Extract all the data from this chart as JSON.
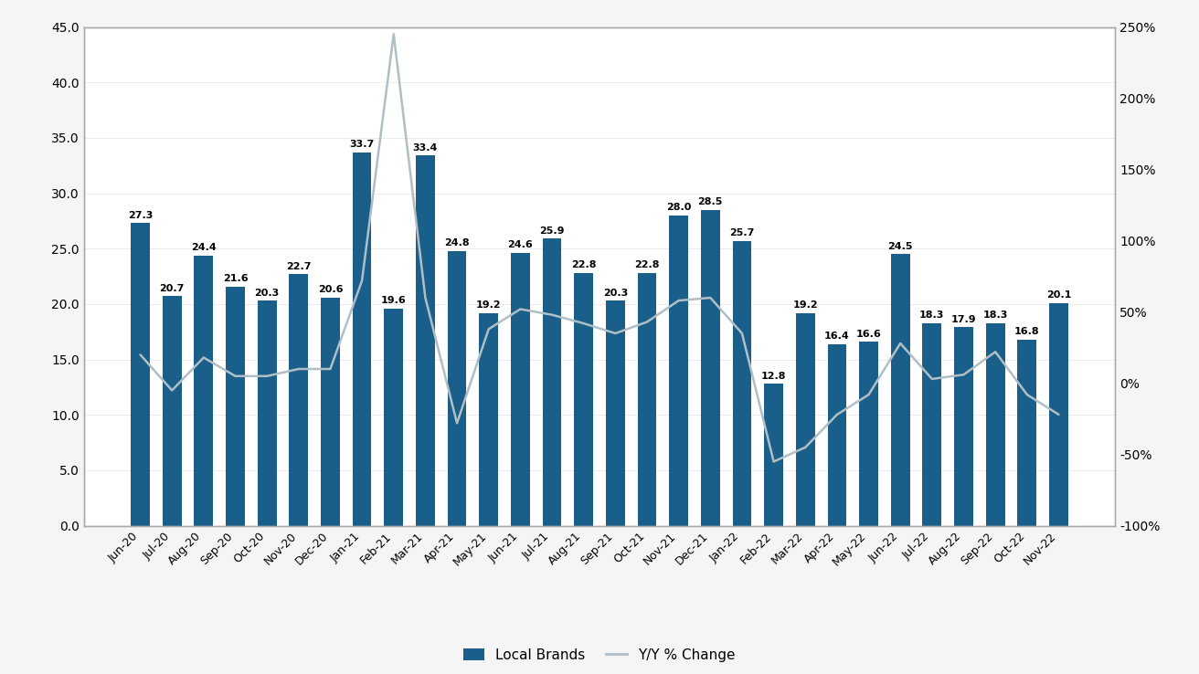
{
  "categories": [
    "Jun-20",
    "Jul-20",
    "Aug-20",
    "Sep-20",
    "Oct-20",
    "Nov-20",
    "Dec-20",
    "Jan-21",
    "Feb-21",
    "Mar-21",
    "Apr-21",
    "May-21",
    "Jun-21",
    "Jul-21",
    "Aug-21",
    "Sep-21",
    "Oct-21",
    "Nov-21",
    "Dec-21",
    "Jan-22",
    "Feb-22",
    "Mar-22",
    "Apr-22",
    "May-22",
    "Jun-22",
    "Jul-22",
    "Aug-22",
    "Sep-22",
    "Oct-22",
    "Nov-22"
  ],
  "bar_values": [
    27.3,
    20.7,
    24.4,
    21.6,
    20.3,
    22.7,
    20.6,
    33.7,
    19.6,
    33.4,
    24.8,
    19.2,
    24.6,
    25.9,
    22.8,
    20.3,
    22.8,
    28.0,
    28.5,
    25.7,
    12.8,
    19.2,
    16.4,
    16.6,
    24.5,
    18.3,
    17.9,
    18.3,
    16.8,
    20.1
  ],
  "yoy_pct": [
    0.2,
    -0.05,
    0.18,
    0.05,
    0.05,
    0.1,
    0.1,
    0.72,
    2.45,
    0.6,
    -0.28,
    0.38,
    0.52,
    0.48,
    0.42,
    0.35,
    0.43,
    0.58,
    0.6,
    0.35,
    -0.55,
    -0.45,
    -0.22,
    -0.08,
    0.28,
    0.03,
    0.06,
    0.22,
    -0.08,
    -0.22
  ],
  "bar_color": "#1a5f8a",
  "line_color": "#b0bec5",
  "left_ylim": [
    0.0,
    45.0
  ],
  "right_ylim": [
    -1.0,
    2.5
  ],
  "left_yticks": [
    0.0,
    5.0,
    10.0,
    15.0,
    20.0,
    25.0,
    30.0,
    35.0,
    40.0,
    45.0
  ],
  "right_yticks": [
    -1.0,
    -0.5,
    0.0,
    0.5,
    1.0,
    1.5,
    2.0,
    2.5
  ],
  "right_yticklabels": [
    "-100%",
    "-50%",
    "0%",
    "50%",
    "100%",
    "150%",
    "200%",
    "250%"
  ],
  "legend_label_bar": "Local Brands",
  "legend_label_line": "Y/Y % Change",
  "background_color": "#ffffff",
  "plot_bg_color": "#ffffff",
  "frame_color": "#aaaaaa",
  "grid_color": "#e8e8e8",
  "tick_label_size": 10,
  "bar_label_size": 8.0,
  "x_label_size": 9
}
